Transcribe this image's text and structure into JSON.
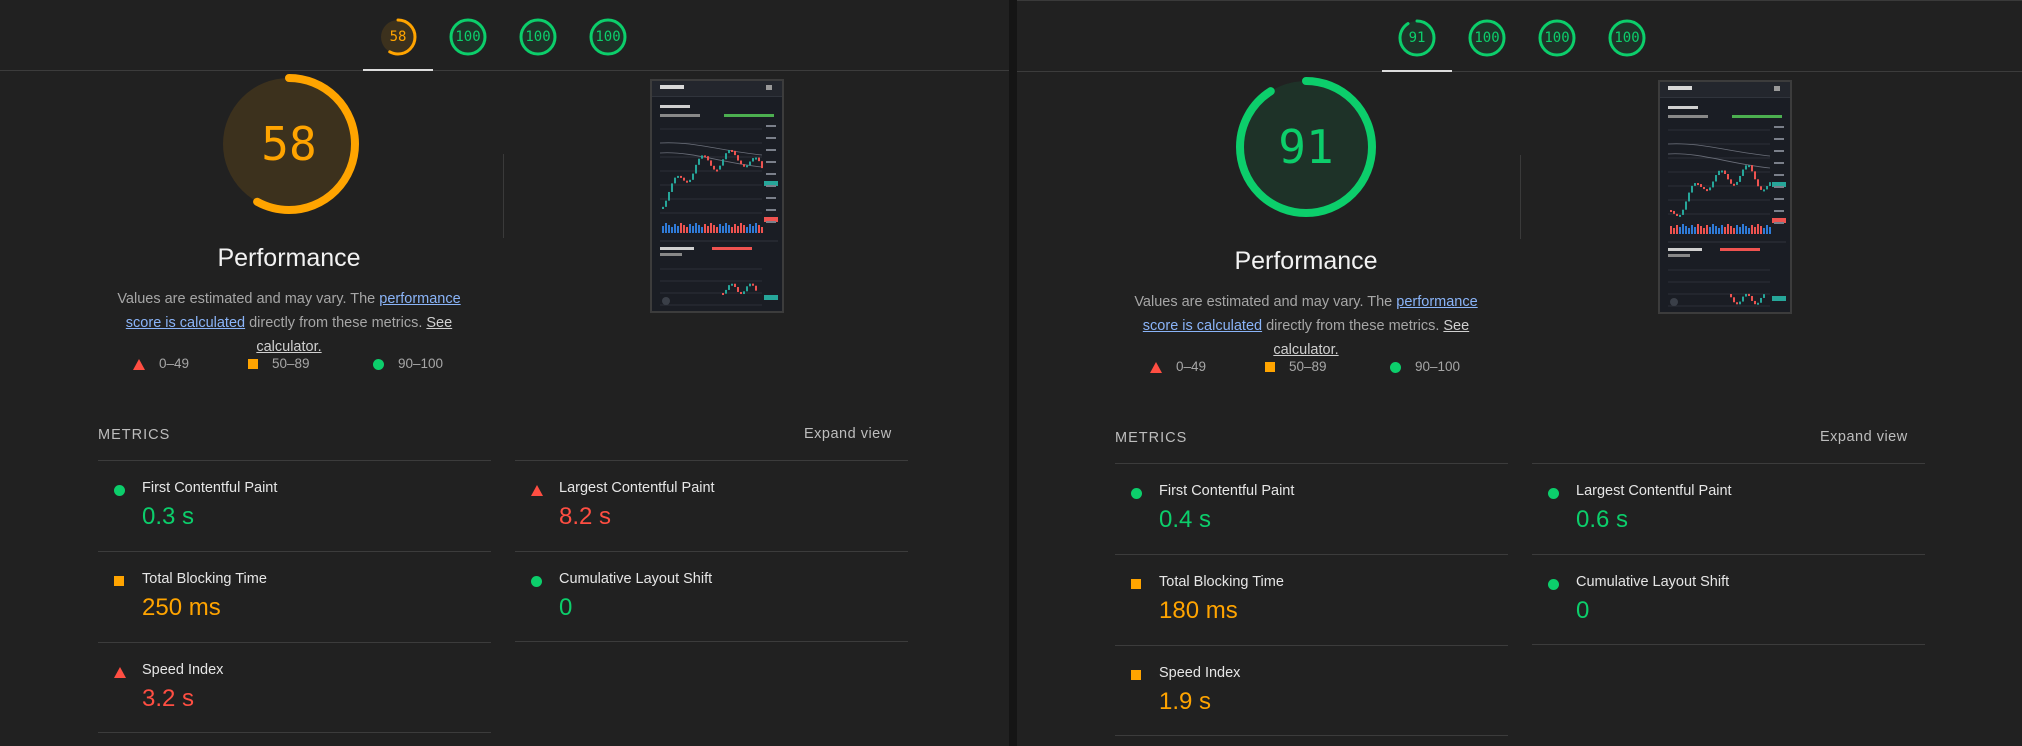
{
  "colors": {
    "good": "#0cce6b",
    "average": "#ffa400",
    "poor": "#ff4e42",
    "link": "#8ab4f8"
  },
  "icons": {
    "poor": "triangle-icon",
    "average": "square-icon",
    "good": "circle-icon"
  },
  "reports": [
    {
      "tabs": [
        {
          "score": "58",
          "rating": "average",
          "value": 58
        },
        {
          "score": "100",
          "rating": "good",
          "value": 100
        },
        {
          "score": "100",
          "rating": "good",
          "value": 100
        },
        {
          "score": "100",
          "rating": "good",
          "value": 100
        }
      ],
      "gauge": {
        "score": "58",
        "value": 58,
        "rating": "average"
      },
      "title": "Performance",
      "description": {
        "prefix": "Values are estimated and may vary. The ",
        "link1": "performance score is calculated",
        "middle": " directly from these metrics. ",
        "link2": "See calculator."
      },
      "legend": [
        {
          "label": "0–49",
          "rating": "poor"
        },
        {
          "label": "50–89",
          "rating": "average"
        },
        {
          "label": "90–100",
          "rating": "good"
        }
      ],
      "metrics_heading": "METRICS",
      "expand_label": "Expand view",
      "metrics": [
        {
          "label": "First Contentful Paint",
          "value": "0.3 s",
          "rating": "good"
        },
        {
          "label": "Largest Contentful Paint",
          "value": "8.2 s",
          "rating": "poor"
        },
        {
          "label": "Total Blocking Time",
          "value": "250 ms",
          "rating": "average"
        },
        {
          "label": "Cumulative Layout Shift",
          "value": "0",
          "rating": "good"
        },
        {
          "label": "Speed Index",
          "value": "3.2 s",
          "rating": "poor"
        }
      ]
    },
    {
      "tabs": [
        {
          "score": "91",
          "rating": "good",
          "value": 91
        },
        {
          "score": "100",
          "rating": "good",
          "value": 100
        },
        {
          "score": "100",
          "rating": "good",
          "value": 100
        },
        {
          "score": "100",
          "rating": "good",
          "value": 100
        }
      ],
      "gauge": {
        "score": "91",
        "value": 91,
        "rating": "good"
      },
      "title": "Performance",
      "description": {
        "prefix": "Values are estimated and may vary. The ",
        "link1": "performance score is calculated",
        "middle": " directly from these metrics. ",
        "link2": "See calculator."
      },
      "legend": [
        {
          "label": "0–49",
          "rating": "poor"
        },
        {
          "label": "50–89",
          "rating": "average"
        },
        {
          "label": "90–100",
          "rating": "good"
        }
      ],
      "metrics_heading": "METRICS",
      "expand_label": "Expand view",
      "metrics": [
        {
          "label": "First Contentful Paint",
          "value": "0.4 s",
          "rating": "good"
        },
        {
          "label": "Largest Contentful Paint",
          "value": "0.6 s",
          "rating": "good"
        },
        {
          "label": "Total Blocking Time",
          "value": "180 ms",
          "rating": "average"
        },
        {
          "label": "Cumulative Layout Shift",
          "value": "0",
          "rating": "good"
        },
        {
          "label": "Speed Index",
          "value": "1.9 s",
          "rating": "average"
        }
      ]
    }
  ]
}
